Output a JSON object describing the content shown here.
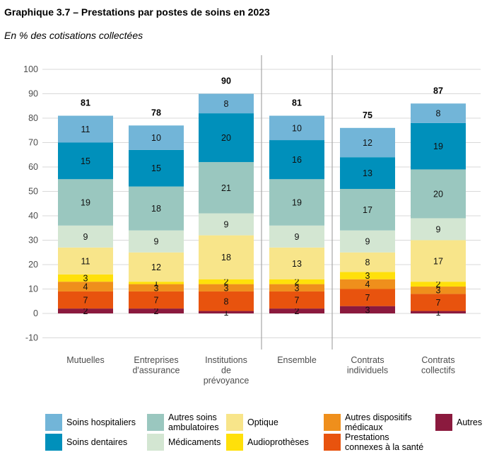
{
  "title": "Graphique 3.7 – Prestations par postes de soins en 2023",
  "subtitle": "En % des cotisations collectées",
  "chart_data": {
    "type": "bar",
    "stacked": true,
    "ylim": [
      -10,
      100
    ],
    "yticks": [
      -10,
      0,
      10,
      20,
      30,
      40,
      50,
      60,
      70,
      80,
      90,
      100
    ],
    "grid": true,
    "legend_position": "bottom",
    "categories": [
      "Mutuelles",
      "Entreprises\nd'assurance",
      "Institutions\nde\nprévoyance",
      "Ensemble",
      "Contrats\nindividuels",
      "Contrats\ncollectifs"
    ],
    "totals": [
      81,
      78,
      90,
      81,
      75,
      87
    ],
    "series": [
      {
        "name": "Autres",
        "color": "#8b1a3e",
        "values": [
          2,
          2,
          1,
          2,
          3,
          1
        ]
      },
      {
        "name": "Prestations connexes à la santé",
        "color": "#e8530e",
        "values": [
          7,
          7,
          8,
          7,
          7,
          7
        ]
      },
      {
        "name": "Autres dispositifs médicaux",
        "color": "#ef8f1c",
        "values": [
          4,
          3,
          3,
          3,
          4,
          3
        ]
      },
      {
        "name": "Audioprothèses",
        "color": "#ffe00a",
        "values": [
          3,
          1,
          2,
          2,
          3,
          2
        ]
      },
      {
        "name": "Optique",
        "color": "#f8e58a",
        "values": [
          11,
          12,
          18,
          13,
          8,
          17
        ]
      },
      {
        "name": "Médicaments",
        "color": "#d3e6d2",
        "values": [
          9,
          9,
          9,
          9,
          9,
          9
        ]
      },
      {
        "name": "Autres soins ambulatoires",
        "color": "#9ac7bf",
        "values": [
          19,
          18,
          21,
          19,
          17,
          20
        ]
      },
      {
        "name": "Soins dentaires",
        "color": "#0090bb",
        "values": [
          15,
          15,
          20,
          16,
          13,
          19
        ]
      },
      {
        "name": "Soins hospitaliers",
        "color": "#72b5d8",
        "values": [
          11,
          10,
          8,
          10,
          12,
          8
        ]
      }
    ],
    "segment_labels": [
      [
        "2",
        "2",
        "1",
        "2",
        "3",
        "1"
      ],
      [
        "7",
        "7",
        "8",
        "7",
        "7",
        "7"
      ],
      [
        "4",
        "3",
        "3",
        "3",
        "4",
        "3"
      ],
      [
        "3",
        "1",
        "2",
        "2",
        "3",
        "2"
      ],
      [
        "11",
        "12",
        "18",
        "13",
        "8",
        "17"
      ],
      [
        "9",
        "9",
        "9",
        "9",
        "9",
        "9"
      ],
      [
        "19",
        "18",
        "21",
        "19",
        "17",
        "20"
      ],
      [
        "15",
        "15",
        "20",
        "16",
        "13",
        "19"
      ],
      [
        "11",
        "10",
        "8",
        "10",
        "12",
        "8"
      ]
    ]
  },
  "legend": [
    {
      "label": "Soins hospitaliers",
      "color": "#72b5d8"
    },
    {
      "label": "Soins dentaires",
      "color": "#0090bb"
    },
    {
      "label": "Autres soins\nambulatoires",
      "color": "#9ac7bf"
    },
    {
      "label": "Médicaments",
      "color": "#d3e6d2"
    },
    {
      "label": "Optique",
      "color": "#f8e58a"
    },
    {
      "label": "Audioprothèses",
      "color": "#ffe00a"
    },
    {
      "label": "Autres dispositifs\nmédicaux",
      "color": "#ef8f1c"
    },
    {
      "label": "Prestations\nconnexes à la santé",
      "color": "#e8530e"
    },
    {
      "label": "Autres",
      "color": "#8b1a3e"
    }
  ]
}
